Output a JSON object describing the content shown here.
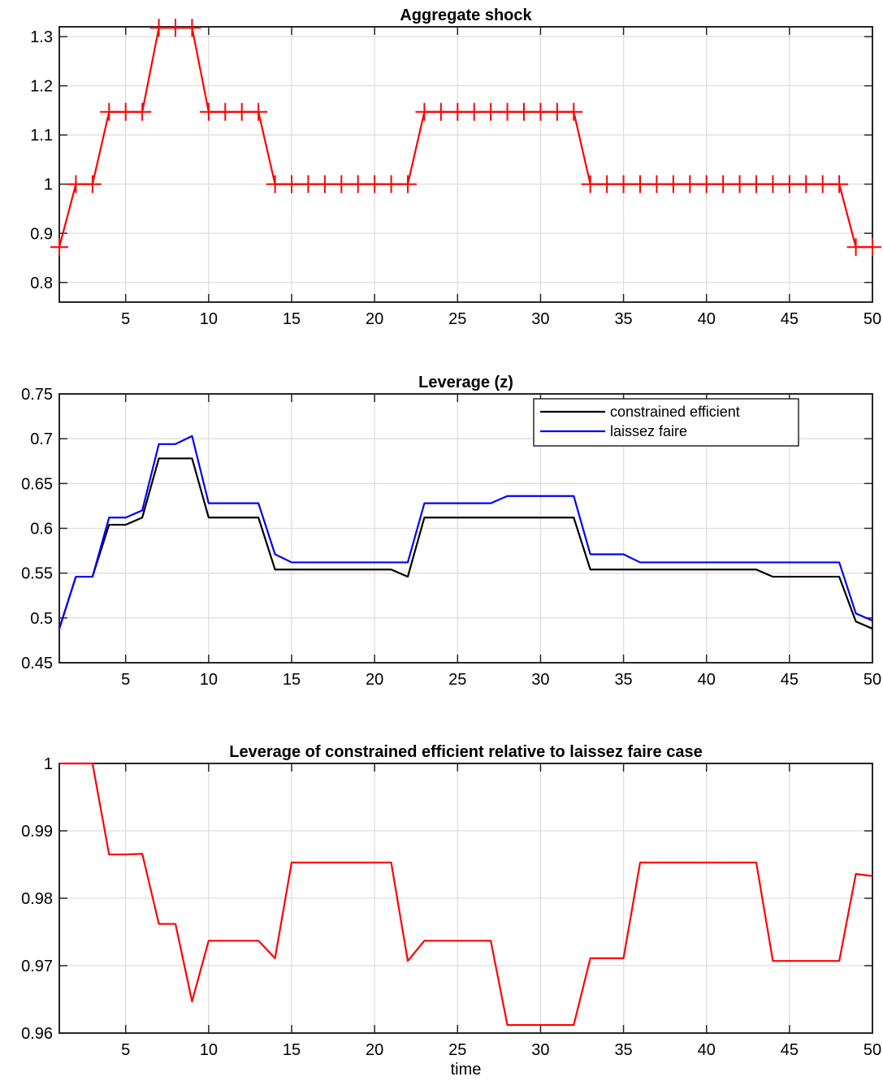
{
  "chart_data": [
    {
      "type": "line",
      "title": "Aggregate shock",
      "xlabel": "",
      "ylabel": "",
      "xlim": [
        1,
        50
      ],
      "ylim": [
        0.76,
        1.32
      ],
      "xticks": [
        5,
        10,
        15,
        20,
        25,
        30,
        35,
        40,
        45,
        50
      ],
      "yticks": [
        0.8,
        0.9,
        1,
        1.1,
        1.2,
        1.3
      ],
      "ytick_labels": [
        "0.8",
        "0.9",
        "1",
        "1.1",
        "1.2",
        "1.3"
      ],
      "grid": true,
      "legend": null,
      "x": [
        1,
        2,
        3,
        4,
        5,
        6,
        7,
        8,
        9,
        10,
        11,
        12,
        13,
        14,
        15,
        16,
        17,
        18,
        19,
        20,
        21,
        22,
        23,
        24,
        25,
        26,
        27,
        28,
        29,
        30,
        31,
        32,
        33,
        34,
        35,
        36,
        37,
        38,
        39,
        40,
        41,
        42,
        43,
        44,
        45,
        46,
        47,
        48,
        49,
        50
      ],
      "series": [
        {
          "color": "#ff0000",
          "marker": "plus",
          "values": [
            0.872,
            1.0,
            1.0,
            1.147,
            1.147,
            1.147,
            1.318,
            1.318,
            1.318,
            1.147,
            1.147,
            1.147,
            1.147,
            1.0,
            1.0,
            1.0,
            1.0,
            1.0,
            1.0,
            1.0,
            1.0,
            1.0,
            1.147,
            1.147,
            1.147,
            1.147,
            1.147,
            1.147,
            1.147,
            1.147,
            1.147,
            1.147,
            1.0,
            1.0,
            1.0,
            1.0,
            1.0,
            1.0,
            1.0,
            1.0,
            1.0,
            1.0,
            1.0,
            1.0,
            1.0,
            1.0,
            1.0,
            1.0,
            0.872,
            0.872
          ]
        }
      ]
    },
    {
      "type": "line",
      "title": "Leverage (z)",
      "xlabel": "",
      "ylabel": "",
      "xlim": [
        1,
        50
      ],
      "ylim": [
        0.45,
        0.75
      ],
      "xticks": [
        5,
        10,
        15,
        20,
        25,
        30,
        35,
        40,
        45,
        50
      ],
      "yticks": [
        0.45,
        0.5,
        0.55,
        0.6,
        0.65,
        0.7,
        0.75
      ],
      "ytick_labels": [
        "0.45",
        "0.5",
        "0.55",
        "0.6",
        "0.65",
        "0.7",
        "0.75"
      ],
      "grid": true,
      "legend": "top-right",
      "x": [
        1,
        2,
        3,
        4,
        5,
        6,
        7,
        8,
        9,
        10,
        11,
        12,
        13,
        14,
        15,
        16,
        17,
        18,
        19,
        20,
        21,
        22,
        23,
        24,
        25,
        26,
        27,
        28,
        29,
        30,
        31,
        32,
        33,
        34,
        35,
        36,
        37,
        38,
        39,
        40,
        41,
        42,
        43,
        44,
        45,
        46,
        47,
        48,
        49,
        50
      ],
      "series": [
        {
          "name": "constrained efficient",
          "color": "#000000",
          "values": [
            0.488,
            0.546,
            0.546,
            0.604,
            0.604,
            0.612,
            0.678,
            0.678,
            0.678,
            0.612,
            0.612,
            0.612,
            0.612,
            0.554,
            0.554,
            0.554,
            0.554,
            0.554,
            0.554,
            0.554,
            0.554,
            0.546,
            0.612,
            0.612,
            0.612,
            0.612,
            0.612,
            0.612,
            0.612,
            0.612,
            0.612,
            0.612,
            0.554,
            0.554,
            0.554,
            0.554,
            0.554,
            0.554,
            0.554,
            0.554,
            0.554,
            0.554,
            0.554,
            0.546,
            0.546,
            0.546,
            0.546,
            0.546,
            0.496,
            0.488
          ]
        },
        {
          "name": "laissez faire",
          "color": "#0000ff",
          "values": [
            0.488,
            0.546,
            0.546,
            0.612,
            0.612,
            0.62,
            0.694,
            0.694,
            0.703,
            0.628,
            0.628,
            0.628,
            0.628,
            0.571,
            0.562,
            0.562,
            0.562,
            0.562,
            0.562,
            0.562,
            0.562,
            0.562,
            0.628,
            0.628,
            0.628,
            0.628,
            0.628,
            0.636,
            0.636,
            0.636,
            0.636,
            0.636,
            0.571,
            0.571,
            0.571,
            0.562,
            0.562,
            0.562,
            0.562,
            0.562,
            0.562,
            0.562,
            0.562,
            0.562,
            0.562,
            0.562,
            0.562,
            0.562,
            0.505,
            0.497
          ]
        }
      ]
    },
    {
      "type": "line",
      "title": "Leverage of constrained efficient relative to laissez faire case",
      "xlabel": "time",
      "ylabel": "",
      "xlim": [
        1,
        50
      ],
      "ylim": [
        0.96,
        1.0
      ],
      "xticks": [
        5,
        10,
        15,
        20,
        25,
        30,
        35,
        40,
        45,
        50
      ],
      "yticks": [
        0.96,
        0.97,
        0.98,
        0.99,
        1.0
      ],
      "ytick_labels": [
        "0.96",
        "0.97",
        "0.98",
        "0.99",
        "1"
      ],
      "grid": true,
      "legend": null,
      "x": [
        1,
        2,
        3,
        4,
        5,
        6,
        7,
        8,
        9,
        10,
        11,
        12,
        13,
        14,
        15,
        16,
        17,
        18,
        19,
        20,
        21,
        22,
        23,
        24,
        25,
        26,
        27,
        28,
        29,
        30,
        31,
        32,
        33,
        34,
        35,
        36,
        37,
        38,
        39,
        40,
        41,
        42,
        43,
        44,
        45,
        46,
        47,
        48,
        49,
        50
      ],
      "series": [
        {
          "color": "#ff0000",
          "values": [
            1.0,
            1.0,
            1.0,
            0.9865,
            0.9865,
            0.9866,
            0.9762,
            0.9762,
            0.9647,
            0.9737,
            0.9737,
            0.9737,
            0.9737,
            0.9711,
            0.9853,
            0.9853,
            0.9853,
            0.9853,
            0.9853,
            0.9853,
            0.9853,
            0.9707,
            0.9737,
            0.9737,
            0.9737,
            0.9737,
            0.9737,
            0.9612,
            0.9612,
            0.9612,
            0.9612,
            0.9612,
            0.9711,
            0.9711,
            0.9711,
            0.9853,
            0.9853,
            0.9853,
            0.9853,
            0.9853,
            0.9853,
            0.9853,
            0.9853,
            0.9707,
            0.9707,
            0.9707,
            0.9707,
            0.9707,
            0.9836,
            0.9833
          ]
        }
      ]
    }
  ]
}
